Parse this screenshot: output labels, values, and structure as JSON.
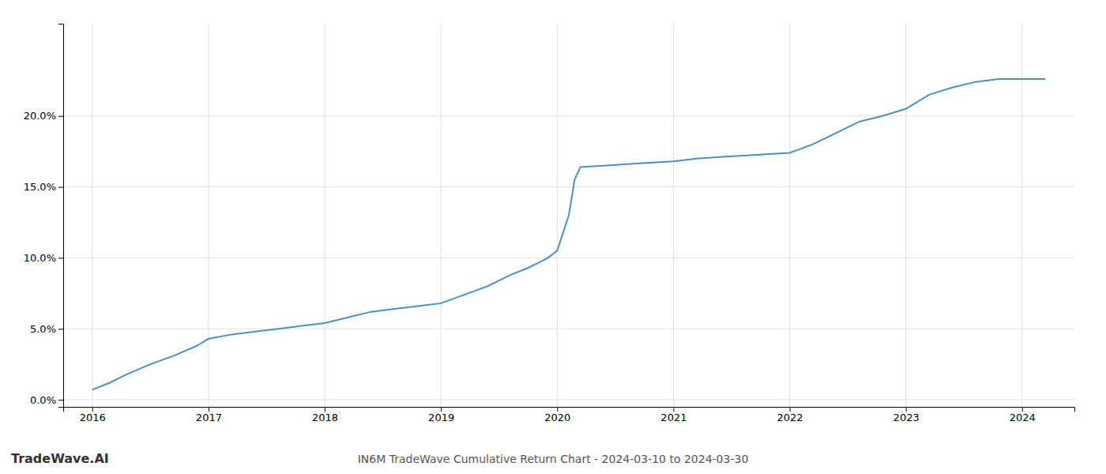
{
  "chart_data": {
    "type": "line",
    "title": "IN6M TradeWave Cumulative Return Chart - 2024-03-10 to 2024-03-30",
    "annotations": [
      "TradeWave.AI"
    ],
    "x": [
      2016.0,
      2016.15,
      2016.3,
      2016.5,
      2016.7,
      2016.9,
      2017.0,
      2017.2,
      2017.4,
      2017.6,
      2017.8,
      2018.0,
      2018.2,
      2018.4,
      2018.6,
      2018.8,
      2019.0,
      2019.2,
      2019.4,
      2019.6,
      2019.75,
      2019.85,
      2019.92,
      2020.0,
      2020.1,
      2020.15,
      2020.2,
      2020.4,
      2020.6,
      2020.8,
      2021.0,
      2021.2,
      2021.4,
      2021.6,
      2021.8,
      2022.0,
      2022.2,
      2022.4,
      2022.6,
      2022.8,
      2023.0,
      2023.1,
      2023.2,
      2023.4,
      2023.6,
      2023.8,
      2024.0,
      2024.2
    ],
    "values": [
      0.007,
      0.012,
      0.018,
      0.025,
      0.031,
      0.038,
      0.043,
      0.046,
      0.048,
      0.05,
      0.052,
      0.054,
      0.058,
      0.062,
      0.064,
      0.066,
      0.068,
      0.074,
      0.08,
      0.088,
      0.093,
      0.097,
      0.1,
      0.105,
      0.13,
      0.155,
      0.164,
      0.165,
      0.166,
      0.167,
      0.168,
      0.17,
      0.171,
      0.172,
      0.173,
      0.174,
      0.18,
      0.188,
      0.196,
      0.2,
      0.205,
      0.21,
      0.215,
      0.22,
      0.224,
      0.226,
      0.226,
      0.226
    ],
    "color": "#4a90c4",
    "xlim": [
      2015.75,
      2024.45
    ],
    "ylim": [
      -0.005,
      0.265
    ],
    "xticks": [
      2016,
      2017,
      2018,
      2019,
      2020,
      2021,
      2022,
      2023,
      2024
    ],
    "yticks": [
      {
        "value": 0.0,
        "label": "0.0%"
      },
      {
        "value": 0.05,
        "label": "5.0%"
      },
      {
        "value": 0.1,
        "label": "10.0%"
      },
      {
        "value": 0.15,
        "label": "15.0%"
      },
      {
        "value": 0.2,
        "label": "20.0%"
      }
    ],
    "grid": true
  }
}
